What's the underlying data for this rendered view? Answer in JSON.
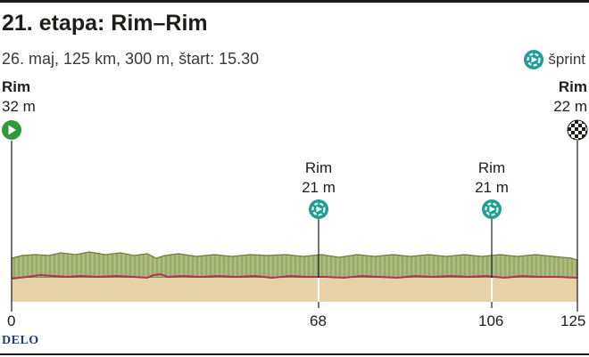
{
  "header": {
    "title": "21. etapa: Rim–Rim",
    "subtitle": "26. maj, 125 km, 300 m, štart: 15.30"
  },
  "legend": {
    "label": "šprint",
    "icon": "sprint-icon"
  },
  "start": {
    "name": "Rim",
    "elevation": "32 m",
    "icon": "start-play-icon"
  },
  "finish": {
    "name": "Rim",
    "elevation": "22 m",
    "icon": "finish-checkered-icon"
  },
  "sprints": [
    {
      "name": "Rim",
      "elevation": "21 m",
      "km": 68,
      "icon": "sprint-icon"
    },
    {
      "name": "Rim",
      "elevation": "21 m",
      "km": 106,
      "icon": "sprint-icon"
    }
  ],
  "km_axis": {
    "labels": [
      "0",
      "68",
      "106",
      "125"
    ],
    "values": [
      0,
      68,
      106,
      125
    ]
  },
  "colors": {
    "terrain_green": "#9fb070",
    "terrain_dark": "#6b7c42",
    "road_sand": "#e8d3a8",
    "route_line": "#b3325a",
    "sprint_teal": "#1f9e96",
    "start_green": "#2e9a3c",
    "text": "#1d1d1b"
  },
  "brand": "DELO"
}
